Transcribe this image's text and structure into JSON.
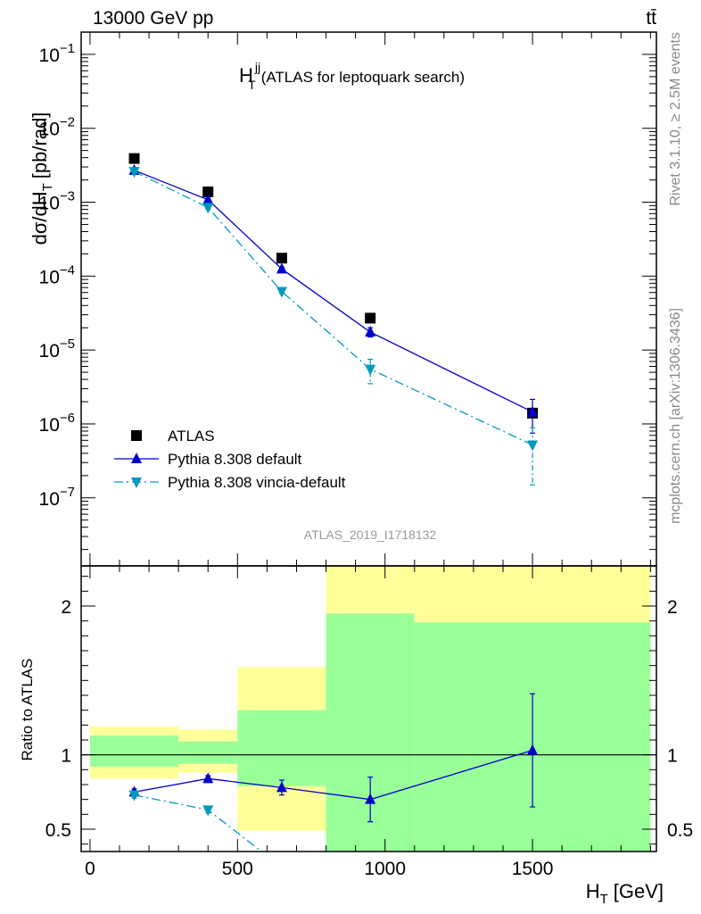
{
  "header": {
    "left": "13000 GeV pp",
    "right": "tt̄"
  },
  "side_text": {
    "top": "Rivet 3.1.10, ≥ 2.5M events",
    "bottom": "mcplots.cern.ch [arXiv:1306.3436]"
  },
  "chart_data": {
    "type": "scatter",
    "title": "H_T^jj (ATLAS for leptoquark search)",
    "title_main": "H",
    "title_sup": "jj",
    "title_sub": "T",
    "title_rest": "(ATLAS for leptoquark search)",
    "analysis_id": "ATLAS_2019_I1718132",
    "xlabel": "H_T [GeV]",
    "xlabel_main": "H",
    "xlabel_sub": "T",
    "xlabel_rest": "[GeV]",
    "ylabel": "dσ/dH_T [pb/rad]",
    "ylabel_main": "dσ/dH",
    "ylabel_sub": "T",
    "ylabel_rest": "[pb/rad]",
    "ratio_ylabel": "Ratio to ATLAS",
    "xlim": [
      -30,
      1920
    ],
    "ylim": [
      1.2e-08,
      0.2
    ],
    "y_scale": "log",
    "ratio_ylim": [
      0.35,
      2.27
    ],
    "x_ticks": [
      0,
      500,
      1000,
      1500
    ],
    "x_tick_labels": [
      "0",
      "500",
      "1000",
      "1500"
    ],
    "y_ticks": [
      {
        "value": 0.1,
        "base": "10",
        "exp": "−1"
      },
      {
        "value": 0.01,
        "base": "10",
        "exp": "−2"
      },
      {
        "value": 0.001,
        "base": "10",
        "exp": "−3"
      },
      {
        "value": 0.0001,
        "base": "10",
        "exp": "−4"
      },
      {
        "value": 1e-05,
        "base": "10",
        "exp": "−5"
      },
      {
        "value": 1e-06,
        "base": "10",
        "exp": "−6"
      },
      {
        "value": 1e-07,
        "base": "10",
        "exp": "−7"
      }
    ],
    "ratio_ticks": [
      {
        "value": 0.5,
        "label": "0.5"
      },
      {
        "value": 1,
        "label": "1"
      },
      {
        "value": 2,
        "label": "2"
      }
    ],
    "legend_position": "bottom-left",
    "series": [
      {
        "name": "ATLAS",
        "marker": "square",
        "color": "#000000",
        "x": [
          150,
          400,
          650,
          950,
          1500
        ],
        "y": [
          0.0039,
          0.00138,
          0.000175,
          2.7e-05,
          1.4e-06
        ]
      },
      {
        "name": "Pythia 8.308 default",
        "marker": "triangle-up",
        "line": "solid",
        "color": "#0000cc",
        "x": [
          150,
          400,
          650,
          950,
          1500
        ],
        "y": [
          0.0027,
          0.00108,
          0.000125,
          1.75e-05,
          1.45e-06
        ],
        "y_err": [
          0.0001,
          4e-05,
          8e-06,
          2.5e-06,
          7e-07
        ],
        "ratio": [
          0.75,
          0.84,
          0.78,
          0.7,
          1.03
        ],
        "ratio_err": [
          0.02,
          0.02,
          0.05,
          0.15,
          0.38
        ]
      },
      {
        "name": "Pythia 8.308 vincia-default",
        "marker": "triangle-down",
        "line": "dash-dot",
        "color": "#0099bb",
        "x": [
          150,
          400,
          650,
          950,
          1500
        ],
        "y": [
          0.0026,
          0.00085,
          6.2e-05,
          5.5e-06,
          5.2e-07
        ],
        "y_err": [
          0.0001,
          4e-05,
          4e-06,
          2e-06,
          3.7e-07
        ],
        "ratio": [
          0.73,
          0.63,
          0.36
        ],
        "ratio_x": [
          150,
          400,
          575
        ],
        "ratio_err": [
          0.02,
          0.02,
          0
        ]
      }
    ],
    "bands": [
      {
        "x0": 0,
        "x1": 300,
        "stat_lo": 0.92,
        "stat_hi": 1.13,
        "tot_lo": 0.84,
        "tot_hi": 1.19
      },
      {
        "x0": 300,
        "x1": 500,
        "stat_lo": 0.94,
        "stat_hi": 1.09,
        "tot_lo": 0.88,
        "tot_hi": 1.17
      },
      {
        "x0": 500,
        "x1": 800,
        "stat_lo": 0.79,
        "stat_hi": 1.3,
        "tot_lo": 0.49,
        "tot_hi": 1.59
      },
      {
        "x0": 800,
        "x1": 1100,
        "stat_lo": 0.35,
        "stat_hi": 1.95,
        "tot_lo": 0.35,
        "tot_hi": 2.27
      },
      {
        "x0": 1100,
        "x1": 1900,
        "stat_lo": 0.35,
        "stat_hi": 1.89,
        "tot_lo": 0.35,
        "tot_hi": 2.27
      }
    ],
    "colors": {
      "stat_band": "#99ff99",
      "total_band": "#ffff99"
    }
  }
}
